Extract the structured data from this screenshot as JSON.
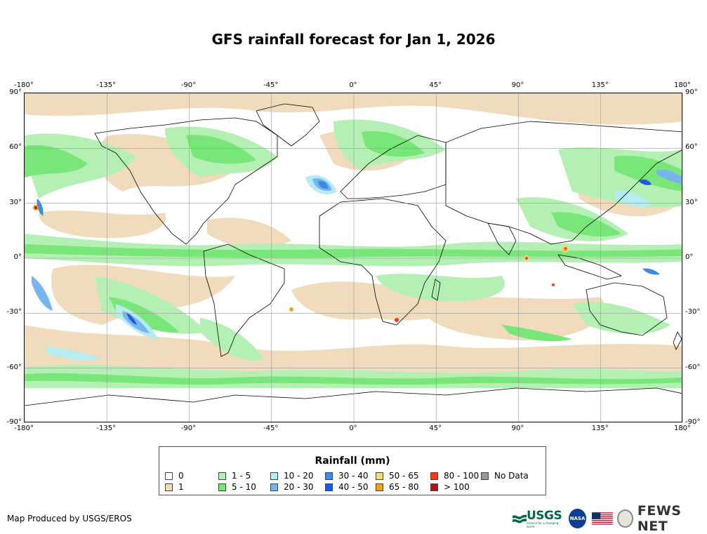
{
  "title": "GFS rainfall forecast for Jan 1, 2026",
  "axes": {
    "lon_ticks": [
      "-180°",
      "-135°",
      "-90°",
      "-45°",
      "0°",
      "45°",
      "90°",
      "135°",
      "180°"
    ],
    "lat_ticks": [
      "90°",
      "60°",
      "30°",
      "0°",
      "-30°",
      "-60°",
      "-90°"
    ]
  },
  "legend": {
    "title": "Rainfall (mm)",
    "items": [
      {
        "label": "0",
        "color": "#ffffff"
      },
      {
        "label": "1",
        "color": "#f0dcbc"
      },
      {
        "label": "1 - 5",
        "color": "#b4f0b4"
      },
      {
        "label": "5 - 10",
        "color": "#78e678"
      },
      {
        "label": "10 - 20",
        "color": "#b4ecf0"
      },
      {
        "label": "20 - 30",
        "color": "#78b4f0"
      },
      {
        "label": "30 - 40",
        "color": "#3c8ce6"
      },
      {
        "label": "40 - 50",
        "color": "#1e5adc"
      },
      {
        "label": "50 - 65",
        "color": "#f0dc78"
      },
      {
        "label": "65 - 80",
        "color": "#f0a01e"
      },
      {
        "label": "80 - 100",
        "color": "#f03c14"
      },
      {
        "label": "> 100",
        "color": "#a01e1e"
      },
      {
        "label": "No Data",
        "color": "#999999"
      }
    ]
  },
  "credit": "Map Produced by USGS/EROS",
  "logos": {
    "usgs": "USGS",
    "usgs_tagline": "science for a changing world",
    "nasa": "NASA",
    "fews": "FEWS NET"
  },
  "colors": {
    "land_outline": "#000000",
    "grid": "#999999"
  }
}
